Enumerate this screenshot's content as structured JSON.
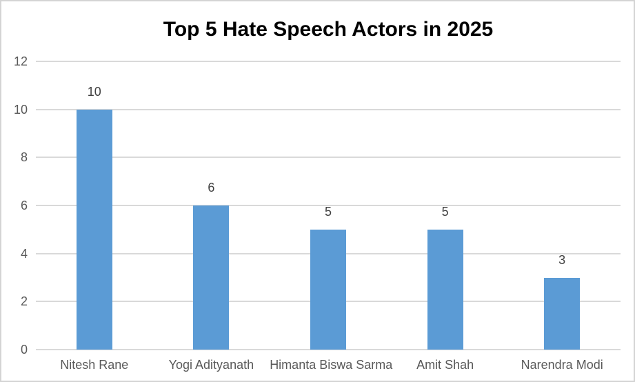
{
  "chart_data": {
    "type": "bar",
    "title": "Top 5 Hate Speech Actors in 2025",
    "categories": [
      "Nitesh Rane",
      "Yogi Adityanath",
      "Himanta Biswa Sarma",
      "Amit Shah",
      "Narendra Modi"
    ],
    "values": [
      10,
      6,
      5,
      5,
      3
    ],
    "data_labels": [
      "10",
      "6",
      "5",
      "5",
      "3"
    ],
    "xlabel": "",
    "ylabel": "",
    "ylim": [
      0,
      12
    ],
    "yticks": [
      0,
      2,
      4,
      6,
      8,
      10,
      12
    ],
    "grid": true,
    "legend": false,
    "colors": {
      "bar_fill": "#5B9BD5",
      "gridline": "#D9D9D9",
      "axis_line": "#D9D9D9",
      "axis_text": "#595959",
      "data_label_text": "#404040",
      "title_text": "#000000",
      "frame_border": "#D4D4D4"
    }
  }
}
